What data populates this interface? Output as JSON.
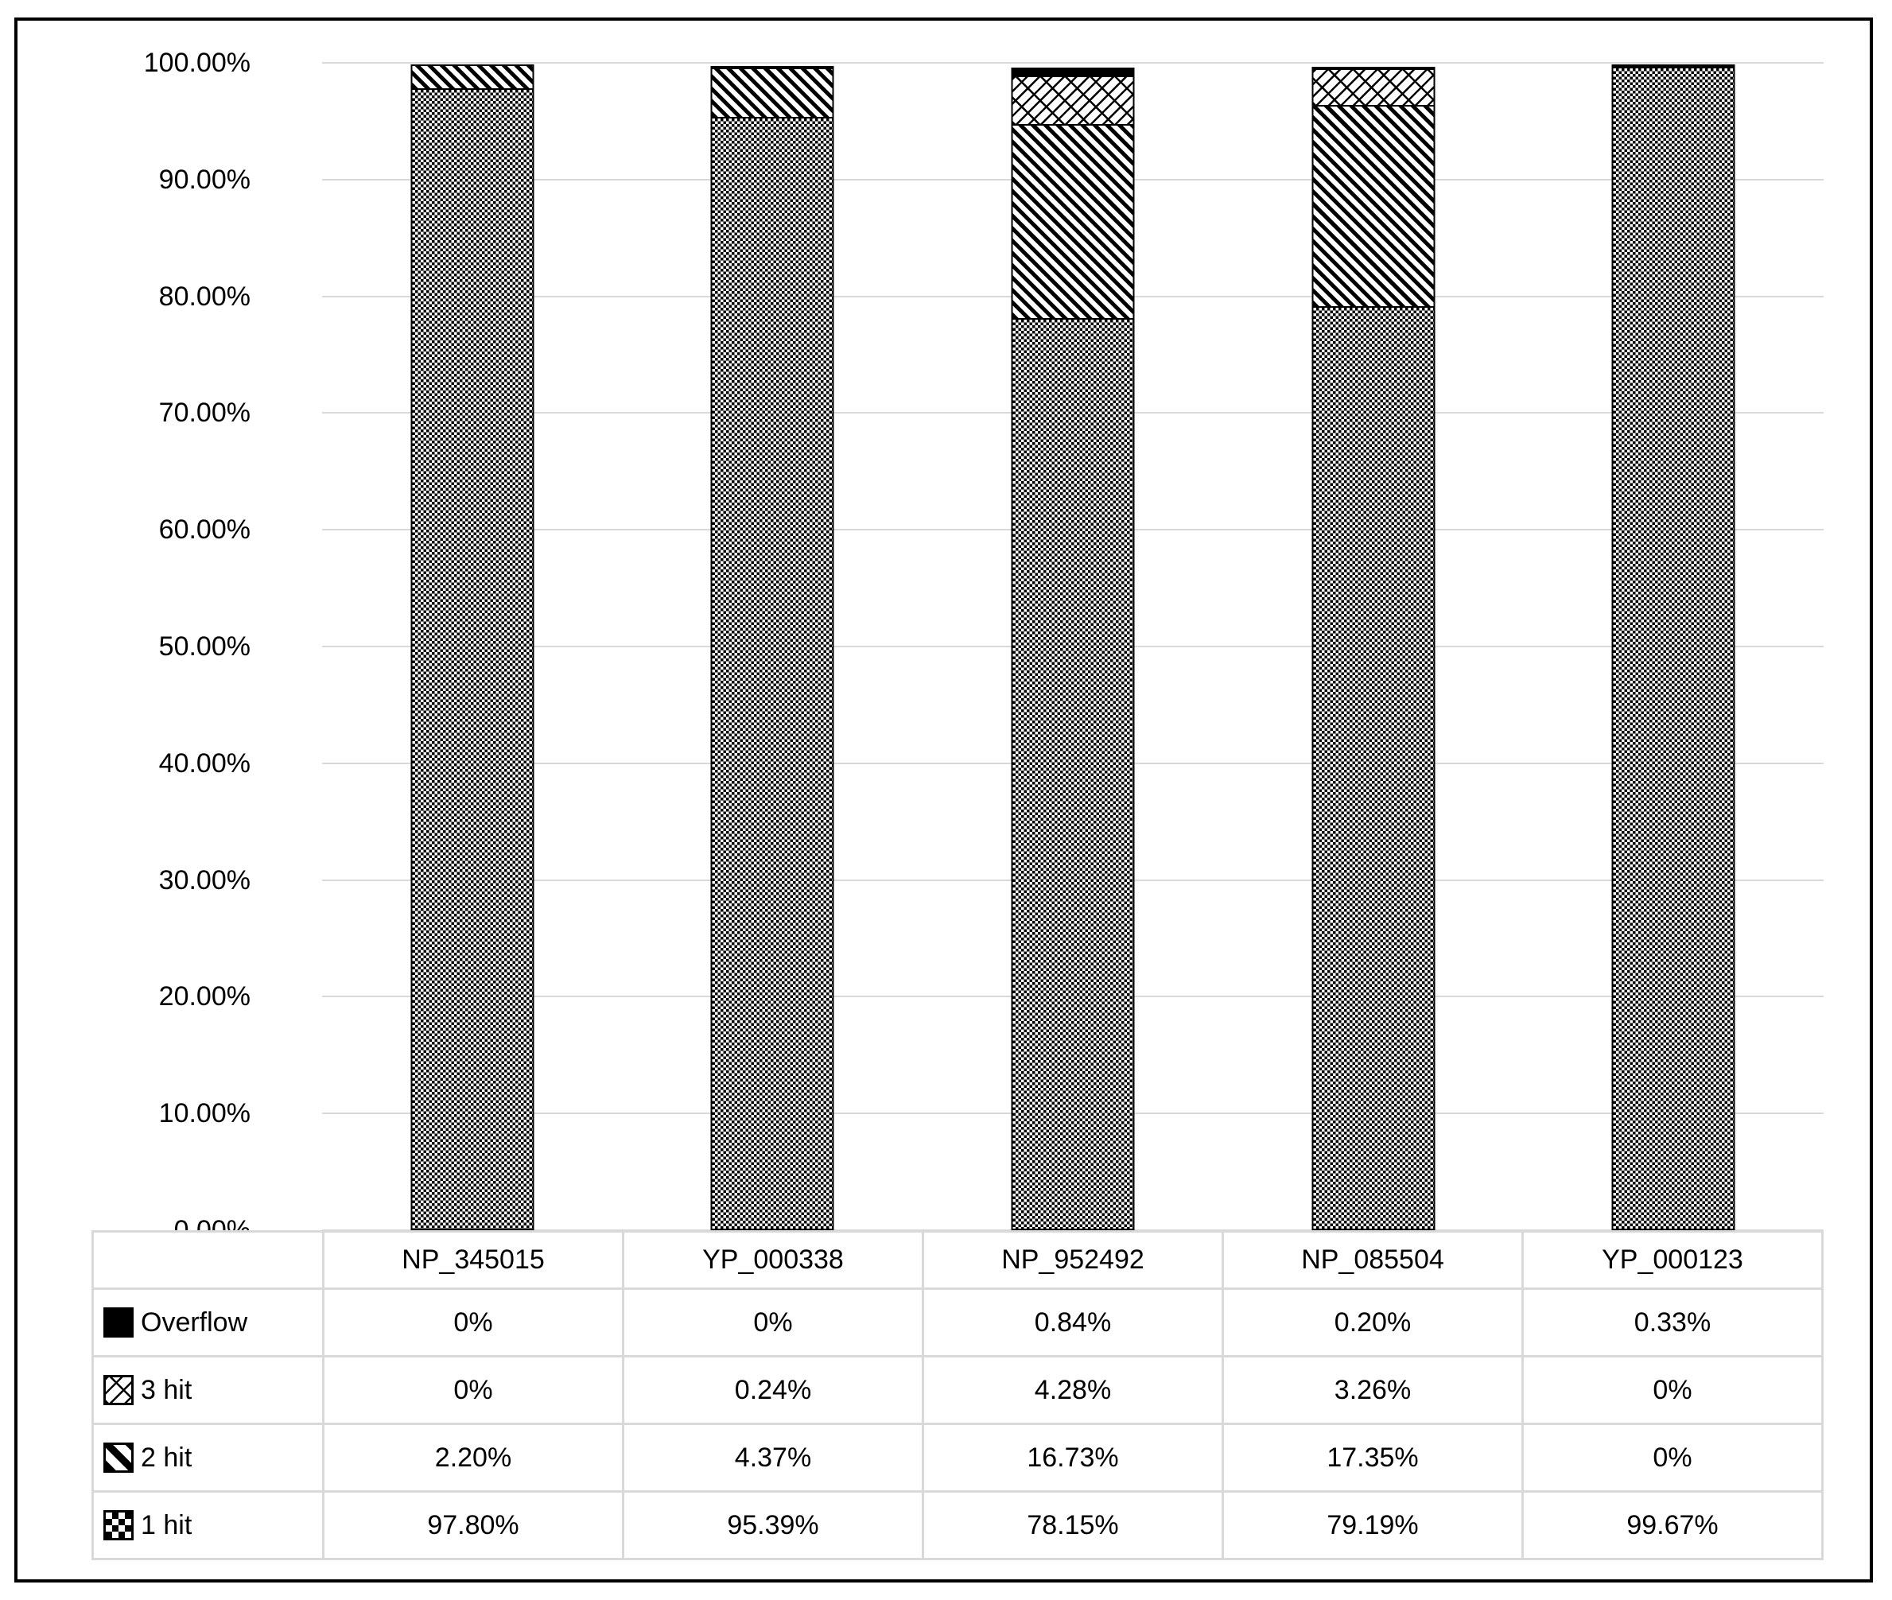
{
  "chart_data": {
    "type": "bar",
    "stacked": true,
    "title": "",
    "xlabel": "",
    "ylabel": "",
    "ylim": [
      0,
      100
    ],
    "grid": true,
    "legend_position": "data-table-left-column",
    "categories": [
      "NP_345015",
      "YP_000338",
      "NP_952492",
      "NP_085504",
      "YP_000123"
    ],
    "ytick_labels": [
      "100.00%",
      "90.00%",
      "80.00%",
      "70.00%",
      "60.00%",
      "50.00%",
      "40.00%",
      "30.00%",
      "20.00%",
      "10.00%",
      "0.00%"
    ],
    "series": [
      {
        "name": "Overflow",
        "pattern": "solid-black",
        "values": [
          0,
          0,
          0.84,
          0.2,
          0.33
        ]
      },
      {
        "name": "3 hit",
        "pattern": "diagonal-lattice",
        "values": [
          0,
          0.24,
          4.28,
          3.26,
          0
        ]
      },
      {
        "name": "2 hit",
        "pattern": "diagonal-stripes",
        "values": [
          2.2,
          4.37,
          16.73,
          17.35,
          0
        ]
      },
      {
        "name": "1 hit",
        "pattern": "checkerboard",
        "values": [
          97.8,
          95.39,
          78.15,
          79.19,
          99.67
        ]
      }
    ]
  },
  "table": {
    "categories": [
      "NP_345015",
      "YP_000338",
      "NP_952492",
      "NP_085504",
      "YP_000123"
    ],
    "rows": [
      {
        "label": "Overflow",
        "icon": "solid-black-swatch-icon",
        "values": [
          "0%",
          "0%",
          "0.84%",
          "0.20%",
          "0.33%"
        ]
      },
      {
        "label": "3 hit",
        "icon": "diagonal-lattice-swatch-icon",
        "values": [
          "0%",
          "0.24%",
          "4.28%",
          "3.26%",
          "0%"
        ]
      },
      {
        "label": "2 hit",
        "icon": "diagonal-stripes-swatch-icon",
        "values": [
          "2.20%",
          "4.37%",
          "16.73%",
          "17.35%",
          "0%"
        ]
      },
      {
        "label": "1 hit",
        "icon": "checkerboard-swatch-icon",
        "values": [
          "97.80%",
          "95.39%",
          "78.15%",
          "79.19%",
          "99.67%"
        ]
      }
    ]
  },
  "colors": {
    "pattern_foreground": "#000000",
    "background": "#ffffff",
    "gridline": "#d9d9d9",
    "table_border": "#d9d9d9",
    "outer_border": "#000000"
  }
}
